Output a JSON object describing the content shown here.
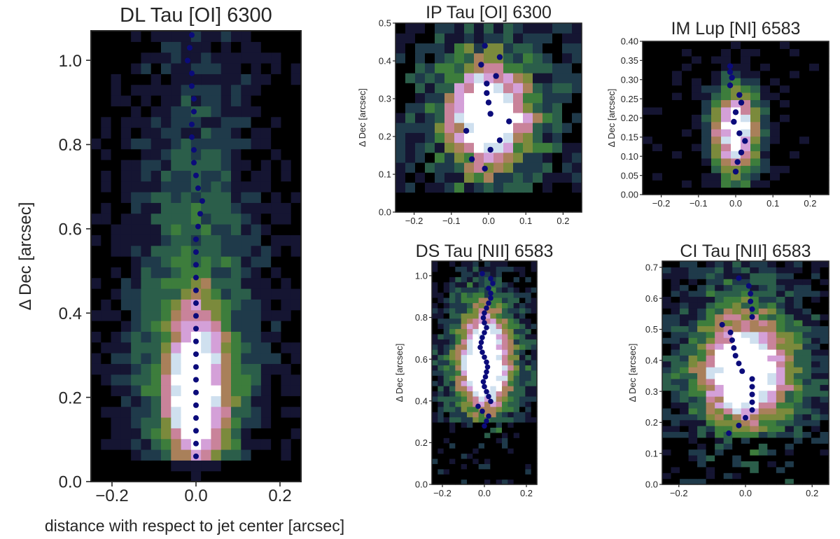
{
  "figure": {
    "shared_xlabel": "distance with respect to jet center [arcsec]"
  },
  "colors": {
    "centroid": "#0b0b7a",
    "colormap": [
      "#000000",
      "#151532",
      "#1f3a4a",
      "#2b5e4a",
      "#3d7d3c",
      "#7b8a3c",
      "#a9805a",
      "#c9839a",
      "#d4a0d8",
      "#cfe0ef",
      "#ffffff"
    ]
  },
  "chart_data": [
    {
      "id": "dltau",
      "type": "heatmap",
      "title": "DL Tau [OI] 6300",
      "xlabel": "",
      "ylabel": "Δ Dec [arcsec]",
      "xlim": [
        -0.25,
        0.25
      ],
      "ylim": [
        0.0,
        1.07
      ],
      "xticks": [
        -0.2,
        0.0,
        0.2
      ],
      "xtick_labels": [
        "−0.2",
        "0.0",
        "0.2"
      ],
      "yticks": [
        0.0,
        0.2,
        0.4,
        0.6,
        0.8,
        1.0
      ],
      "ytick_labels": [
        "0.0",
        "0.2",
        "0.4",
        "0.6",
        "0.8",
        "1.0"
      ],
      "grid": {
        "nx": 21,
        "ny": 42
      },
      "emission": {
        "peak": [
          0.0,
          0.2
        ],
        "sx": 0.055,
        "sy0": 0.12,
        "sy1": 0.19,
        "tail": 0.35,
        "tail_scale": 0.85,
        "floor_y": 0.04,
        "halo": 0.25,
        "noise": 0.17,
        "seed": 11,
        "dark_bottom": 0.02
      },
      "centroid_y_range": [
        0.06,
        1.06
      ],
      "centroid_count": 34,
      "centroid_x": [
        0.0,
        0.0,
        0.0,
        0.0,
        0.0,
        0.0,
        0.0,
        0.0,
        0.0,
        0.0,
        0.0,
        0.0,
        0.0,
        0.0,
        0.0,
        0.0,
        0.0,
        0.0,
        0.005,
        0.01,
        0.015,
        0.005,
        0.0,
        -0.005,
        -0.005,
        -0.01,
        -0.01,
        -0.005,
        -0.005,
        -0.01,
        -0.01,
        -0.02,
        -0.015,
        -0.01
      ]
    },
    {
      "id": "iptau",
      "type": "heatmap",
      "title": "IP Tau [OI] 6300",
      "xlabel": "",
      "ylabel": "Δ Dec [arcsec]",
      "xlim": [
        -0.25,
        0.25
      ],
      "ylim": [
        0.0,
        0.5
      ],
      "xticks": [
        -0.2,
        -0.1,
        0.0,
        0.1,
        0.2
      ],
      "xtick_labels": [
        "−0.2",
        "−0.1",
        "0.0",
        "0.1",
        "0.2"
      ],
      "yticks": [
        0.0,
        0.1,
        0.2,
        0.3,
        0.4,
        0.5
      ],
      "ytick_labels": [
        "0.0",
        "0.1",
        "0.2",
        "0.3",
        "0.4",
        "0.5"
      ],
      "grid": {
        "nx": 19,
        "ny": 19
      },
      "emission": {
        "peak": [
          0.0,
          0.26
        ],
        "sx": 0.07,
        "sy0": 0.09,
        "sy1": 0.09,
        "tail": 0.0,
        "tail_scale": 0.0,
        "floor_y": 0.05,
        "halo": 0.33,
        "noise": 0.3,
        "seed": 23,
        "dark_bottom": 0.0
      },
      "centroids": [
        [
          -0.01,
          0.44
        ],
        [
          0.03,
          0.41
        ],
        [
          -0.02,
          0.39
        ],
        [
          0.02,
          0.36
        ],
        [
          -0.005,
          0.34
        ],
        [
          -0.005,
          0.315
        ],
        [
          0.0,
          0.29
        ],
        [
          0.005,
          0.26
        ],
        [
          0.055,
          0.24
        ],
        [
          -0.06,
          0.215
        ],
        [
          0.03,
          0.19
        ],
        [
          0.005,
          0.165
        ],
        [
          -0.045,
          0.14
        ],
        [
          -0.01,
          0.115
        ]
      ]
    },
    {
      "id": "imlup",
      "type": "heatmap",
      "title": "IM Lup [NI] 6583",
      "xlabel": "",
      "ylabel": "Δ Dec [arcsec]",
      "xlim": [
        -0.25,
        0.25
      ],
      "ylim": [
        0.0,
        0.4
      ],
      "xticks": [
        -0.2,
        -0.1,
        0.0,
        0.1,
        0.2
      ],
      "xtick_labels": [
        "−0.2",
        "−0.1",
        "0.0",
        "0.1",
        "0.2"
      ],
      "yticks": [
        0.0,
        0.05,
        0.1,
        0.15,
        0.2,
        0.25,
        0.3,
        0.35,
        0.4
      ],
      "ytick_labels": [
        "0.00",
        "0.05",
        "0.10",
        "0.15",
        "0.20",
        "0.25",
        "0.30",
        "0.35",
        "0.40"
      ],
      "grid": {
        "nx": 19,
        "ny": 21
      },
      "emission": {
        "peak": [
          0.0,
          0.17
        ],
        "sx": 0.045,
        "sy0": 0.09,
        "sy1": 0.08,
        "tail": 0.0,
        "tail_scale": 0.0,
        "floor_y": 0.02,
        "halo": 0.05,
        "noise": 0.18,
        "seed": 37,
        "dark_bottom": 0.0
      },
      "centroids": [
        [
          -0.015,
          0.335
        ],
        [
          -0.015,
          0.32
        ],
        [
          -0.01,
          0.305
        ],
        [
          -0.015,
          0.285
        ],
        [
          0.01,
          0.26
        ],
        [
          0.015,
          0.24
        ],
        [
          0.0,
          0.215
        ],
        [
          -0.005,
          0.19
        ],
        [
          0.01,
          0.16
        ],
        [
          0.025,
          0.14
        ],
        [
          0.015,
          0.11
        ],
        [
          0.005,
          0.085
        ],
        [
          0.0,
          0.06
        ]
      ]
    },
    {
      "id": "dstau",
      "type": "heatmap",
      "title": "DS Tau [NII] 6583",
      "xlabel": "",
      "ylabel": "Δ Dec [arcsec]",
      "xlim": [
        -0.25,
        0.25
      ],
      "ylim": [
        0.0,
        1.07
      ],
      "xticks": [
        -0.2,
        0.0,
        0.2
      ],
      "xtick_labels": [
        "−0.2",
        "0.0",
        "0.2"
      ],
      "yticks": [
        0.0,
        0.2,
        0.4,
        0.6,
        0.8,
        1.0
      ],
      "ytick_labels": [
        "0.0",
        "0.2",
        "0.4",
        "0.6",
        "0.8",
        "1.0"
      ],
      "grid": {
        "nx": 18,
        "ny": 43
      },
      "emission": {
        "peak": [
          0.0,
          0.56
        ],
        "sx": 0.08,
        "sy0": 0.14,
        "sy1": 0.2,
        "tail": 0.0,
        "tail_scale": 0.0,
        "floor_y": 0.0,
        "halo": 0.35,
        "noise": 0.27,
        "seed": 51,
        "dark_bottom": 0.3
      },
      "centroid_y_range": [
        0.28,
        1.01
      ],
      "centroid_count": 32,
      "centroid_x": [
        0.0,
        0.01,
        0.02,
        -0.01,
        -0.03,
        0.03,
        0.02,
        0.01,
        0.0,
        -0.005,
        0.005,
        0.01,
        0.015,
        0.01,
        0.0,
        -0.01,
        -0.02,
        -0.015,
        -0.01,
        0.0,
        0.01,
        0.0,
        -0.005,
        0.0,
        0.01,
        0.02,
        0.03,
        0.03,
        0.02,
        0.04,
        0.03,
        -0.01
      ]
    },
    {
      "id": "citau",
      "type": "heatmap",
      "title": "CI Tau [NII] 6583",
      "xlabel": "",
      "ylabel": "Δ Dec [arcsec]",
      "xlim": [
        -0.25,
        0.25
      ],
      "ylim": [
        0.0,
        0.72
      ],
      "xticks": [
        -0.2,
        0.0,
        0.2
      ],
      "xtick_labels": [
        "−0.2",
        "0.0",
        "0.2"
      ],
      "yticks": [
        0.0,
        0.1,
        0.2,
        0.3,
        0.4,
        0.5,
        0.6,
        0.7
      ],
      "ytick_labels": [
        "0.0",
        "0.1",
        "0.2",
        "0.3",
        "0.4",
        "0.5",
        "0.6",
        "0.7"
      ],
      "grid": {
        "nx": 19,
        "ny": 38
      },
      "emission": {
        "peak": [
          0.0,
          0.36
        ],
        "sx": 0.08,
        "sy0": 0.1,
        "sy1": 0.12,
        "tail": 0.0,
        "tail_scale": 0.0,
        "floor_y": 0.0,
        "halo": 0.38,
        "noise": 0.27,
        "seed": 71,
        "dark_bottom": 0.16
      },
      "centroids": [
        [
          -0.02,
          0.665
        ],
        [
          0.01,
          0.64
        ],
        [
          0.015,
          0.615
        ],
        [
          0.015,
          0.59
        ],
        [
          0.02,
          0.565
        ],
        [
          0.02,
          0.54
        ],
        [
          -0.07,
          0.515
        ],
        [
          -0.045,
          0.49
        ],
        [
          -0.04,
          0.465
        ],
        [
          -0.035,
          0.44
        ],
        [
          -0.03,
          0.415
        ],
        [
          -0.02,
          0.39
        ],
        [
          -0.01,
          0.365
        ],
        [
          0.02,
          0.34
        ],
        [
          0.02,
          0.315
        ],
        [
          0.02,
          0.29
        ],
        [
          0.02,
          0.265
        ],
        [
          0.02,
          0.24
        ],
        [
          0.0,
          0.215
        ],
        [
          -0.02,
          0.19
        ],
        [
          -0.05,
          0.165
        ]
      ]
    }
  ]
}
